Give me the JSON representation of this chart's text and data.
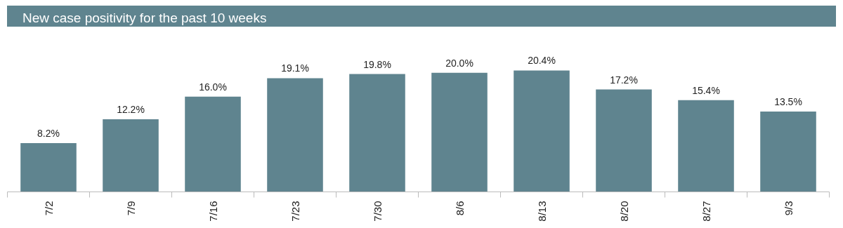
{
  "chart_data": {
    "type": "bar",
    "title": "New case positivity for the past 10 weeks",
    "categories": [
      "7/2",
      "7/9",
      "7/16",
      "7/23",
      "7/30",
      "8/6",
      "8/13",
      "8/20",
      "8/27",
      "9/3"
    ],
    "values": [
      8.2,
      12.2,
      16.0,
      19.1,
      19.8,
      20.0,
      20.4,
      17.2,
      15.4,
      13.5
    ],
    "value_labels": [
      "8.2%",
      "12.2%",
      "16.0%",
      "19.1%",
      "19.8%",
      "20.0%",
      "20.4%",
      "17.2%",
      "15.4%",
      "13.5%"
    ],
    "color": "#5f848f",
    "grid": false
  }
}
